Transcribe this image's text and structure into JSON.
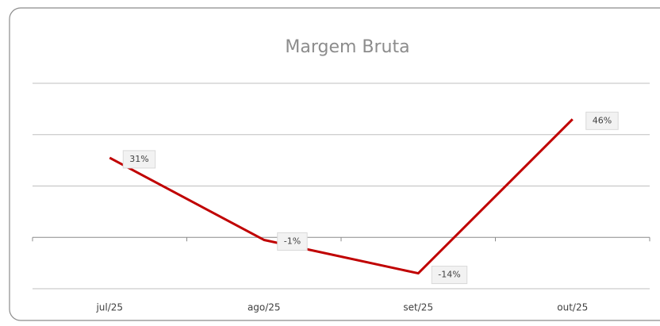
{
  "chart_data": {
    "type": "line",
    "title": "Margem Bruta",
    "categories": [
      "jul/25",
      "ago/25",
      "set/25",
      "out/25"
    ],
    "series": [
      {
        "name": "Margem Bruta",
        "color": "#c00000",
        "values": [
          31,
          -1,
          -14,
          46
        ],
        "value_labels": [
          "31%",
          "-1%",
          "-14%",
          "46%"
        ]
      }
    ],
    "ylim": [
      -20,
      60
    ],
    "yticks": [
      -20,
      0,
      20,
      40,
      60
    ],
    "grid": true
  }
}
